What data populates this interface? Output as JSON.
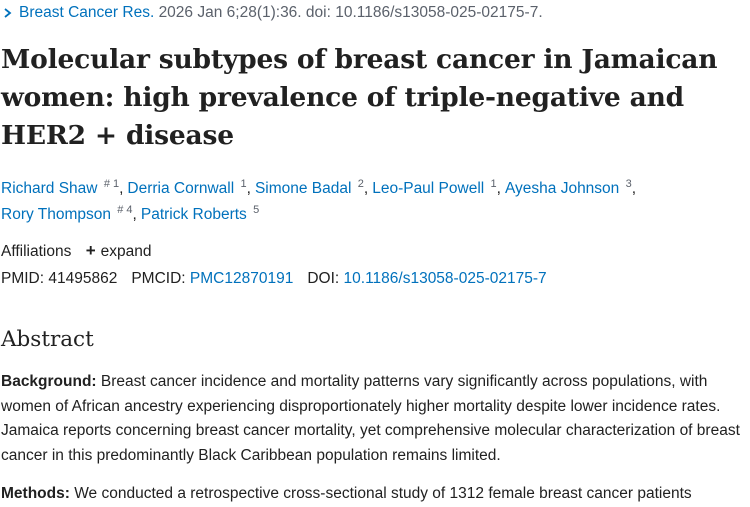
{
  "citation": {
    "journal": "Breast Cancer Res.",
    "details": "2026 Jan 6;28(1):36. doi: 10.1186/s13058-025-02175-7."
  },
  "article": {
    "title": "Molecular subtypes of breast cancer in Jamaican women: high prevalence of triple-negative and HER2 + disease"
  },
  "authors": [
    {
      "name": "Richard Shaw",
      "equal": "#",
      "affil": "1"
    },
    {
      "name": "Derria Cornwall",
      "equal": "",
      "affil": "1"
    },
    {
      "name": "Simone Badal",
      "equal": "",
      "affil": "2"
    },
    {
      "name": "Leo-Paul Powell",
      "equal": "",
      "affil": "1"
    },
    {
      "name": "Ayesha Johnson",
      "equal": "",
      "affil": "3"
    },
    {
      "name": "Rory Thompson",
      "equal": "#",
      "affil": "4"
    },
    {
      "name": "Patrick Roberts",
      "equal": "",
      "affil": "5"
    }
  ],
  "affiliations": {
    "label": "Affiliations",
    "expand_label": "expand"
  },
  "identifiers": {
    "pmid_label": "PMID:",
    "pmid": "41495862",
    "pmcid_label": "PMCID:",
    "pmcid": "PMC12870191",
    "doi_label": "DOI:",
    "doi": "10.1186/s13058-025-02175-7"
  },
  "abstract": {
    "heading": "Abstract",
    "background_label": "Background:",
    "background_text": "Breast cancer incidence and mortality patterns vary significantly across populations, with women of African ancestry experiencing disproportionately higher mortality despite lower incidence rates. Jamaica reports concerning breast cancer mortality, yet comprehensive molecular characterization of breast cancer in this predominantly Black Caribbean population remains limited.",
    "methods_label": "Methods:",
    "methods_text": "We conducted a retrospective cross-sectional study of 1312 female breast cancer patients"
  },
  "colors": {
    "link": "#0071bc",
    "text": "#212121",
    "muted": "#5b616b"
  }
}
